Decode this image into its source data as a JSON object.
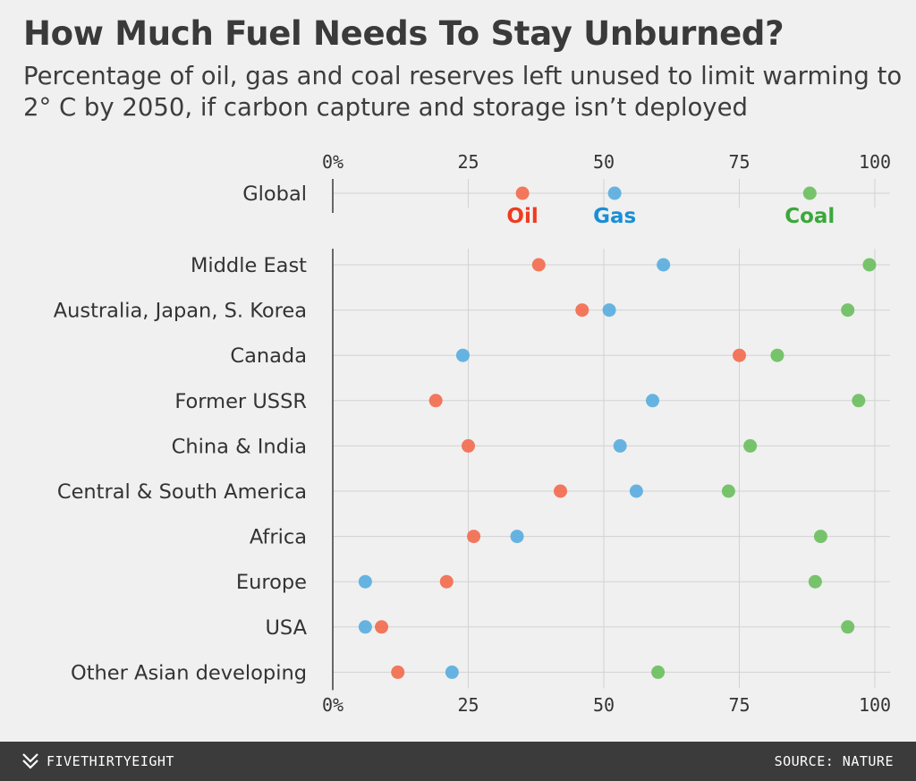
{
  "title": "How Much Fuel Needs To Stay Unburned?",
  "subtitle": "Percentage of oil, gas and coal reserves left unused to limit warming to 2° C by 2050, if carbon capture and storage isn’t deployed",
  "footer": {
    "brand": "FIVETHIRTYEIGHT",
    "source": "SOURCE: NATURE"
  },
  "colors": {
    "oil": "#f26c4f",
    "gas": "#5aaee0",
    "coal": "#6cbf5f",
    "oil_label": "#ef3b1f",
    "gas_label": "#1a8ed6",
    "coal_label": "#3aa83a"
  },
  "chart_data": {
    "type": "scatter",
    "x_axis": {
      "range": [
        0,
        100
      ],
      "ticks": [
        0,
        25,
        50,
        75,
        100
      ],
      "tick_labels": [
        "0%",
        "25",
        "50",
        "75",
        "100"
      ],
      "position": "top-and-bottom"
    },
    "grid": true,
    "legend": "inline-global-row",
    "categories": [
      "Global",
      "Middle East",
      "Australia, Japan, S. Korea",
      "Canada",
      "Former USSR",
      "China & India",
      "Central & South America",
      "Africa",
      "Europe",
      "USA",
      "Other Asian developing"
    ],
    "series": [
      {
        "name": "Oil",
        "key": "oil",
        "values": [
          35,
          38,
          46,
          75,
          19,
          25,
          42,
          26,
          21,
          9,
          12
        ]
      },
      {
        "name": "Gas",
        "key": "gas",
        "values": [
          52,
          61,
          51,
          24,
          59,
          53,
          56,
          34,
          6,
          6,
          22
        ]
      },
      {
        "name": "Coal",
        "key": "coal",
        "values": [
          88,
          99,
          95,
          82,
          97,
          77,
          73,
          90,
          89,
          95,
          60
        ]
      }
    ]
  }
}
